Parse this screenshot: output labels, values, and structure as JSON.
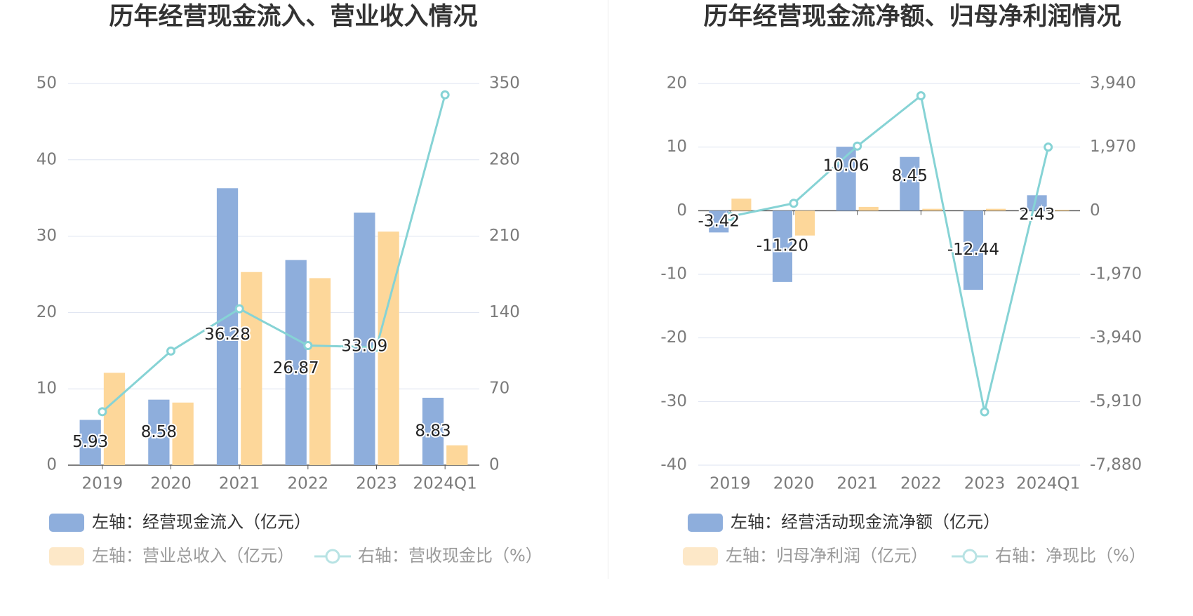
{
  "chart_data": [
    {
      "type": "bar",
      "title": "历年经营现金流入、营业收入情况",
      "categories": [
        "2019",
        "2020",
        "2021",
        "2022",
        "2023",
        "2024Q1"
      ],
      "y_left": {
        "min": 0,
        "max": 50,
        "ticks": [
          "0",
          "10",
          "20",
          "30",
          "40",
          "50"
        ]
      },
      "y_right": {
        "min": 0,
        "max": 350,
        "ticks": [
          "0",
          "70",
          "140",
          "210",
          "280",
          "350"
        ]
      },
      "grid": true,
      "legend_position": "bottom",
      "series": [
        {
          "name": "左轴：经营现金流入（亿元）",
          "kind": "bar",
          "axis": "left",
          "color": "#8eaedc",
          "values": [
            5.93,
            8.58,
            36.28,
            26.87,
            33.09,
            8.83
          ],
          "labels": [
            "5.93",
            "8.58",
            "36.28",
            "26.87",
            "33.09",
            "8.83"
          ]
        },
        {
          "name": "左轴：营业总收入（亿元）",
          "kind": "bar",
          "axis": "left",
          "color": "#fdd79a",
          "values": [
            12.1,
            8.2,
            25.3,
            24.5,
            30.6,
            2.6
          ]
        },
        {
          "name": "右轴：营收现金比（%）",
          "kind": "line",
          "axis": "right",
          "color": "#86d3d5",
          "values": [
            49.0,
            104.6,
            143.4,
            109.7,
            108.1,
            339.6
          ]
        }
      ]
    },
    {
      "type": "bar",
      "title": "历年经营现金流净额、归母净利润情况",
      "categories": [
        "2019",
        "2020",
        "2021",
        "2022",
        "2023",
        "2024Q1"
      ],
      "y_left": {
        "min": -40,
        "max": 20,
        "ticks": [
          "-40",
          "-30",
          "-20",
          "-10",
          "0",
          "10",
          "20"
        ]
      },
      "y_right": {
        "min": -7880,
        "max": 3940,
        "ticks": [
          "-7,880",
          "-5,910",
          "-3,940",
          "-1,970",
          "0",
          "1,970",
          "3,940"
        ]
      },
      "grid": true,
      "legend_position": "bottom",
      "series": [
        {
          "name": "左轴：经营活动现金流净额（亿元）",
          "kind": "bar",
          "axis": "left",
          "color": "#8eaedc",
          "values": [
            -3.42,
            -11.2,
            10.06,
            8.45,
            -12.44,
            2.43
          ],
          "labels": [
            "-3.42",
            "-11.20",
            "10.06",
            "8.45",
            "-12.44",
            "2.43"
          ]
        },
        {
          "name": "左轴：归母净利润（亿元）",
          "kind": "bar",
          "axis": "left",
          "color": "#fdd79a",
          "values": [
            1.9,
            -3.9,
            0.6,
            0.3,
            0.3,
            0.15
          ]
        },
        {
          "name": "右轴：净现比（%）",
          "kind": "line",
          "axis": "right",
          "color": "#86d3d5",
          "values": [
            -180,
            230,
            2000,
            3560,
            -6230,
            1970
          ]
        }
      ]
    }
  ]
}
